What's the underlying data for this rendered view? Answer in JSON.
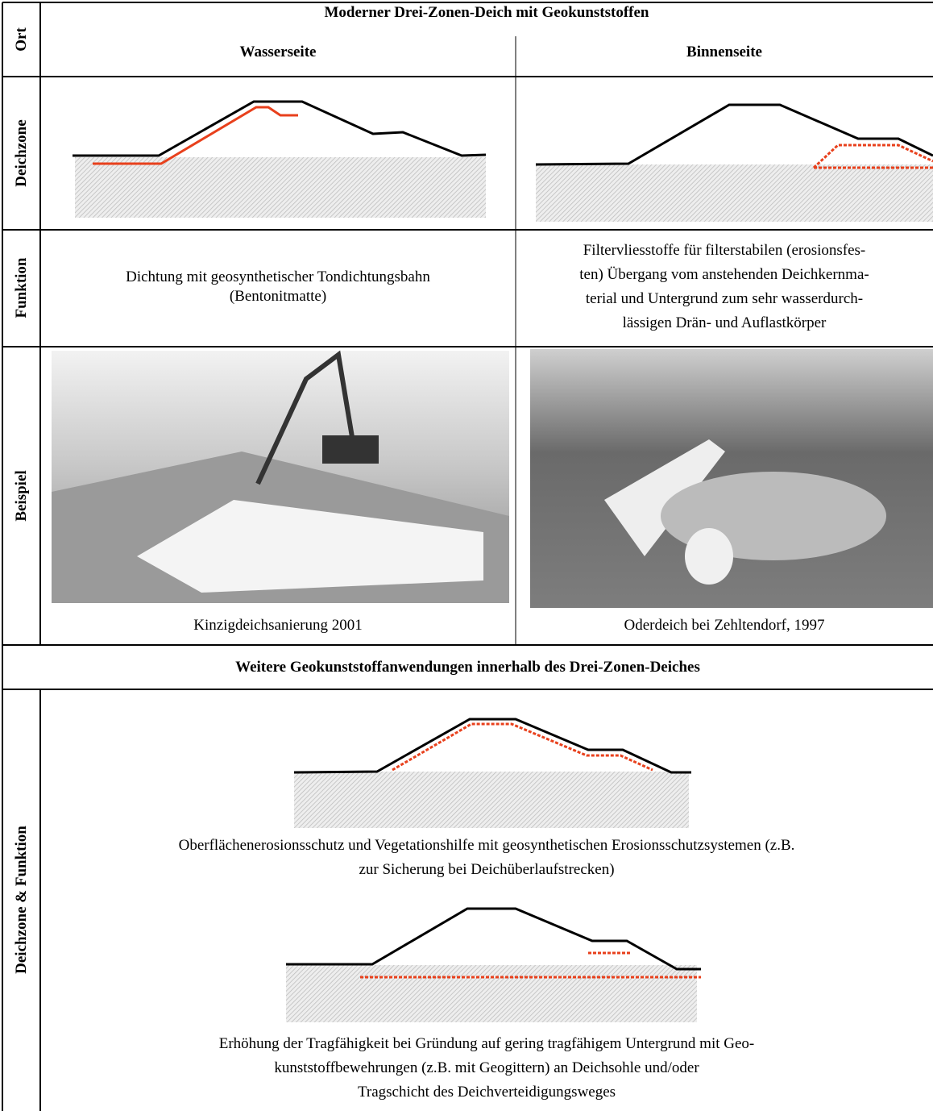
{
  "header": {
    "title": "Moderner Drei-Zonen-Deich mit Geokunststoffen",
    "col_left": "Wasserseite",
    "col_right": "Binnenseite"
  },
  "row_labels": {
    "ort": "Ort",
    "deichzone": "Deichzone",
    "funktion": "Funktion",
    "beispiel": "Beispiel",
    "deichzone_funktion": "Deichzone & Funktion"
  },
  "funktion": {
    "left": [
      "Dichtung mit geosynthetischer Tondichtungsbahn",
      "(Bentonitmatte)"
    ],
    "right": [
      "Filtervliesstoffe für filterstabilen (erosionsfes-",
      "ten) Übergang vom anstehenden Deichkernma-",
      "terial und Untergrund zum sehr wasserdurch-",
      "lässigen Drän- und Auflastkörper"
    ]
  },
  "beispiel": {
    "left_caption": "Kinzigdeichsanierung 2001",
    "right_caption": "Oderdeich bei Zehltendorf, 1997"
  },
  "section": {
    "title": "Weitere Geokunststoffanwendungen innerhalb des Drei-Zonen-Deiches",
    "text_1": [
      "Oberflächenerosionsschutz und Vegetationshilfe mit geosynthetischen Erosionsschutzsystemen (z.B.",
      "zur Sicherung bei Deichüberlaufstrecken)"
    ],
    "text_2": [
      "Erhöhung der Tragfähigkeit bei Gründung auf gering tragfähigem Untergrund mit Geo-",
      "kunststoffbewehrungen (z.B. mit Geogittern) an Deichsohle und/oder",
      "Tragschicht des Deichverteidigungsweges"
    ]
  }
}
